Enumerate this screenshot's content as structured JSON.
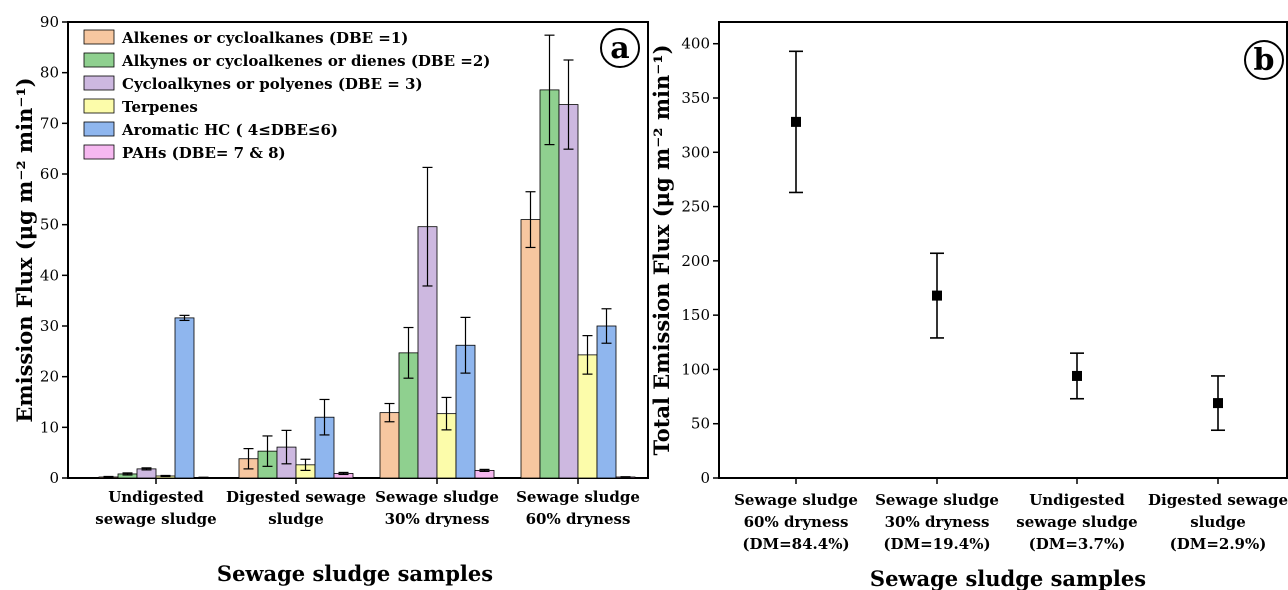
{
  "chart_data": [
    {
      "type": "bar",
      "panel_label": "a",
      "xlabel": "Sewage sludge samples",
      "ylabel": "Emission Flux (μg m⁻² min⁻¹)",
      "ylim": [
        0,
        90
      ],
      "yticks": [
        0,
        10,
        20,
        30,
        40,
        50,
        60,
        70,
        80,
        90
      ],
      "legend_position": "top-left",
      "grid": false,
      "categories": [
        [
          "Undigested",
          "sewage sludge"
        ],
        [
          "Digested sewage",
          "sludge"
        ],
        [
          "Sewage sludge",
          "30% dryness"
        ],
        [
          "Sewage sludge",
          "60% dryness"
        ]
      ],
      "series": [
        {
          "name": "Alkenes or cycloalkanes (DBE =1)",
          "color": "#f7c7a0",
          "values": [
            0.2,
            3.8,
            12.9,
            51.0
          ],
          "errors": [
            0.1,
            2.0,
            1.8,
            5.5
          ]
        },
        {
          "name": "Alkynes or cycloalkenes or dienes (DBE =2)",
          "color": "#8fd08f",
          "values": [
            0.8,
            5.3,
            24.7,
            76.6
          ],
          "errors": [
            0.2,
            3.0,
            5.0,
            10.8
          ]
        },
        {
          "name": "Cycloalkynes or polyenes (DBE = 3)",
          "color": "#cdb8e0",
          "values": [
            1.8,
            6.1,
            49.6,
            73.7
          ],
          "errors": [
            0.2,
            3.3,
            11.7,
            8.8
          ]
        },
        {
          "name": "Terpenes",
          "color": "#fcfcaa",
          "values": [
            0.4,
            2.6,
            12.7,
            24.3
          ],
          "errors": [
            0.1,
            1.1,
            3.2,
            3.8
          ]
        },
        {
          "name": "Aromatic HC ( 4≤DBE≤6)",
          "color": "#8fb6ee",
          "values": [
            31.6,
            12.0,
            26.2,
            30.0
          ],
          "errors": [
            0.5,
            3.5,
            5.5,
            3.4
          ]
        },
        {
          "name": "PAHs (DBE= 7 & 8)",
          "color": "#f6b8f0",
          "values": [
            0.1,
            0.9,
            1.5,
            0.2
          ],
          "errors": [
            0.05,
            0.2,
            0.2,
            0.05
          ]
        }
      ]
    },
    {
      "type": "scatter",
      "panel_label": "b",
      "xlabel": "Sewage sludge samples",
      "ylabel": "Total Emission Flux (μg m⁻² min⁻¹)",
      "ylim": [
        0,
        420
      ],
      "yticks": [
        0,
        50,
        100,
        150,
        200,
        250,
        300,
        350,
        400
      ],
      "grid": false,
      "categories": [
        [
          "Sewage sludge",
          "60% dryness",
          "(DM=84.4%)"
        ],
        [
          "Sewage sludge",
          "30% dryness",
          "(DM=19.4%)"
        ],
        [
          "Undigested",
          "sewage sludge",
          "(DM=3.7%)"
        ],
        [
          "Digested sewage",
          "sludge",
          "(DM=2.9%)"
        ]
      ],
      "values": [
        328,
        168,
        94,
        69
      ],
      "errors": [
        65,
        39,
        21,
        25
      ]
    }
  ]
}
